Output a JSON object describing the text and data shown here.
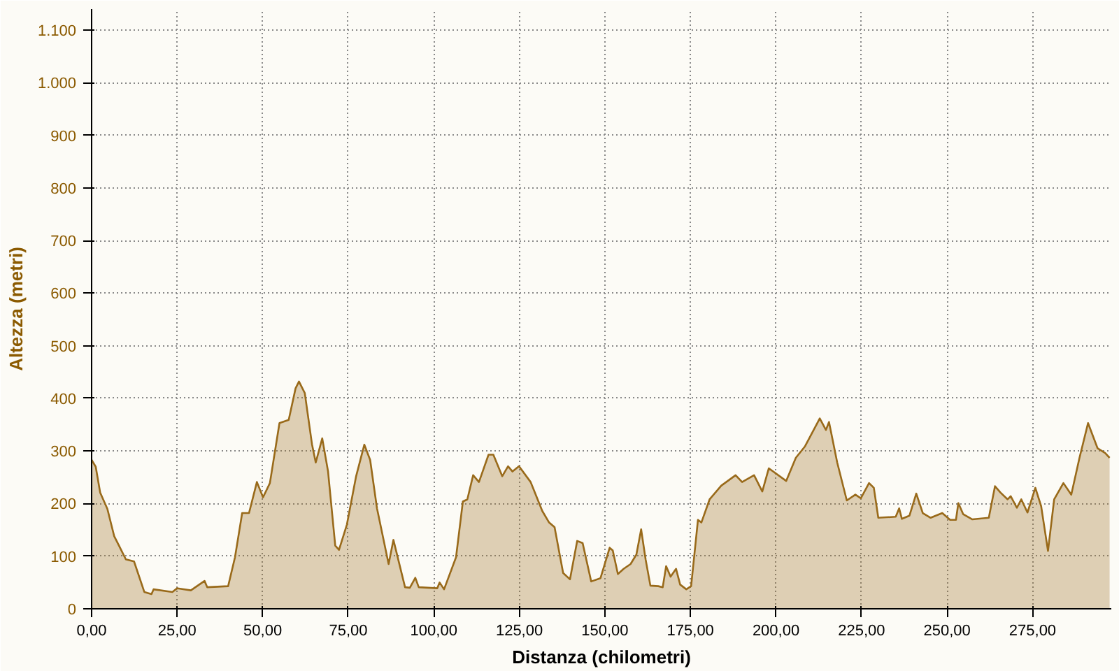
{
  "chart_data": {
    "type": "area",
    "xlabel": "Distanza (chilometri)",
    "ylabel": "Altezza (metri)",
    "xlim": [
      0,
      298
    ],
    "ylim": [
      0,
      1140
    ],
    "xticks": [
      {
        "value": 0,
        "label": "0,00"
      },
      {
        "value": 25,
        "label": "25,00"
      },
      {
        "value": 50,
        "label": "50,00"
      },
      {
        "value": 75,
        "label": "75,00"
      },
      {
        "value": 100,
        "label": "100,00"
      },
      {
        "value": 125,
        "label": "125,00"
      },
      {
        "value": 150,
        "label": "150,00"
      },
      {
        "value": 175,
        "label": "175,00"
      },
      {
        "value": 200,
        "label": "200,00"
      },
      {
        "value": 225,
        "label": "225,00"
      },
      {
        "value": 250,
        "label": "250,00"
      },
      {
        "value": 275,
        "label": "275,00"
      }
    ],
    "yticks": [
      0,
      100,
      200,
      300,
      400,
      500,
      600,
      700,
      800,
      900,
      {
        "value": 1000,
        "label": "1.000"
      },
      {
        "value": 1100,
        "label": "1.100"
      }
    ],
    "grid": true,
    "line_style": "solid",
    "x": [
      0,
      1.2,
      2.5,
      4.6,
      6.6,
      8,
      10,
      12.4,
      15.4,
      17.5,
      18.1,
      23.6,
      25,
      29,
      33,
      33.8,
      39.9,
      41.9,
      44,
      46,
      48.3,
      50.1,
      52.1,
      54.9,
      57.6,
      59.6,
      60.6,
      62.3,
      64.4,
      65.5,
      67.4,
      69.1,
      71.2,
      72.3,
      74.6,
      77.3,
      79.7,
      81.4,
      83.4,
      86.8,
      88.2,
      91.6,
      93,
      94.6,
      95.6,
      101,
      101.7,
      103,
      106.5,
      108.5,
      109.8,
      111.5,
      113.2,
      116,
      117.4,
      120,
      121.7,
      123,
      124.9,
      128.3,
      131.7,
      133.7,
      135.3,
      137.8,
      139.8,
      141.9,
      143.5,
      146,
      148.7,
      151.4,
      152.3,
      153.8,
      155.5,
      157.5,
      159.2,
      160.6,
      161.9,
      163.3,
      165.6,
      166.9,
      167.9,
      169.2,
      170.8,
      172,
      173.8,
      175.2,
      177.2,
      178.2,
      180.6,
      184,
      188.2,
      190.1,
      193.6,
      196,
      197.9,
      203,
      205.8,
      208.5,
      212.8,
      214.6,
      215.5,
      217.9,
      220.7,
      223.2,
      224.8,
      227.2,
      228.6,
      229.9,
      235,
      236,
      236.8,
      239,
      241,
      242.9,
      245.2,
      248.6,
      250.9,
      252.6,
      253.3,
      254.7,
      257.4,
      262.2,
      264,
      265.6,
      267.7,
      268.6,
      270.4,
      271.7,
      273.5,
      275.8,
      277.5,
      279.5,
      281.3,
      284,
      286.3,
      288.7,
      291.2,
      294,
      296.2,
      297.5
    ],
    "series": [
      {
        "color": "#996a1a",
        "values": [
          283,
          270,
          221,
          190,
          138,
          120,
          94,
          90,
          32,
          28,
          37,
          32,
          39,
          35,
          53,
          41,
          43,
          98,
          182,
          182,
          241,
          212,
          239,
          353,
          359,
          419,
          432,
          410,
          313,
          278,
          324,
          261,
          120,
          112,
          160,
          252,
          312,
          283,
          191,
          85,
          131,
          41,
          40,
          59,
          41,
          39,
          50,
          37,
          98,
          204,
          208,
          254,
          241,
          293,
          293,
          252,
          271,
          261,
          271,
          241,
          186,
          164,
          155,
          68,
          56,
          129,
          125,
          52,
          58,
          116,
          111,
          66,
          76,
          85,
          103,
          151,
          94,
          44,
          43,
          41,
          81,
          61,
          76,
          46,
          37,
          43,
          169,
          164,
          208,
          234,
          254,
          241,
          254,
          223,
          267,
          243,
          287,
          309,
          362,
          340,
          355,
          278,
          206,
          217,
          210,
          239,
          230,
          173,
          175,
          191,
          171,
          177,
          219,
          182,
          173,
          182,
          169,
          169,
          201,
          180,
          170,
          173,
          233,
          221,
          208,
          214,
          192,
          208,
          183,
          230,
          195,
          110,
          208,
          239,
          217,
          287,
          353,
          305,
          296,
          287
        ]
      }
    ]
  }
}
